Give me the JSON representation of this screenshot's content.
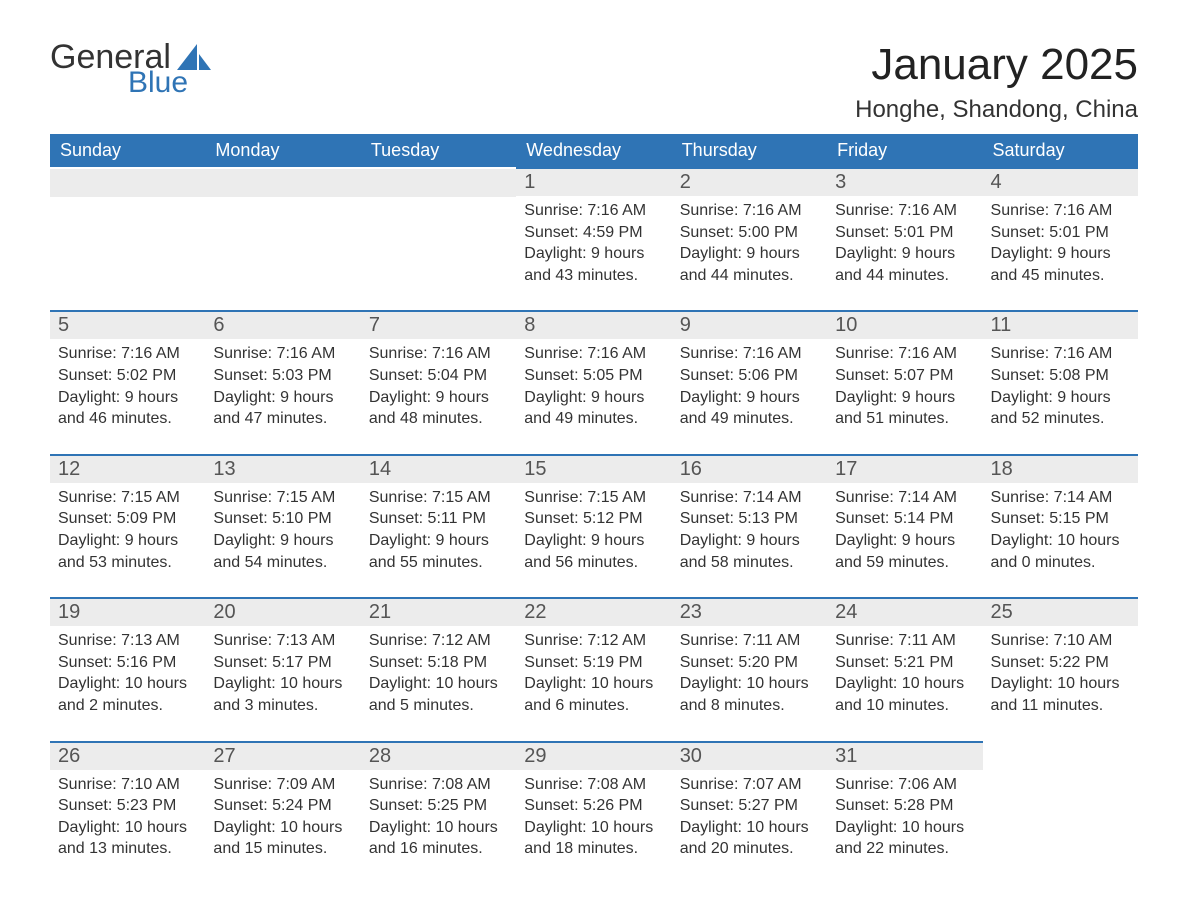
{
  "logo": {
    "general": "General",
    "blue": "Blue",
    "sail_color": "#2f74b5"
  },
  "title": "January 2025",
  "location": "Honghe, Shandong, China",
  "colors": {
    "header_bg": "#2f74b5",
    "header_fg": "#ffffff",
    "daynum_bg": "#ececec",
    "row_border": "#2f74b5",
    "text": "#333333"
  },
  "weekdays": [
    "Sunday",
    "Monday",
    "Tuesday",
    "Wednesday",
    "Thursday",
    "Friday",
    "Saturday"
  ],
  "weeks": [
    [
      null,
      null,
      null,
      {
        "n": "1",
        "sunrise": "7:16 AM",
        "sunset": "4:59 PM",
        "daylight": "9 hours and 43 minutes."
      },
      {
        "n": "2",
        "sunrise": "7:16 AM",
        "sunset": "5:00 PM",
        "daylight": "9 hours and 44 minutes."
      },
      {
        "n": "3",
        "sunrise": "7:16 AM",
        "sunset": "5:01 PM",
        "daylight": "9 hours and 44 minutes."
      },
      {
        "n": "4",
        "sunrise": "7:16 AM",
        "sunset": "5:01 PM",
        "daylight": "9 hours and 45 minutes."
      }
    ],
    [
      {
        "n": "5",
        "sunrise": "7:16 AM",
        "sunset": "5:02 PM",
        "daylight": "9 hours and 46 minutes."
      },
      {
        "n": "6",
        "sunrise": "7:16 AM",
        "sunset": "5:03 PM",
        "daylight": "9 hours and 47 minutes."
      },
      {
        "n": "7",
        "sunrise": "7:16 AM",
        "sunset": "5:04 PM",
        "daylight": "9 hours and 48 minutes."
      },
      {
        "n": "8",
        "sunrise": "7:16 AM",
        "sunset": "5:05 PM",
        "daylight": "9 hours and 49 minutes."
      },
      {
        "n": "9",
        "sunrise": "7:16 AM",
        "sunset": "5:06 PM",
        "daylight": "9 hours and 49 minutes."
      },
      {
        "n": "10",
        "sunrise": "7:16 AM",
        "sunset": "5:07 PM",
        "daylight": "9 hours and 51 minutes."
      },
      {
        "n": "11",
        "sunrise": "7:16 AM",
        "sunset": "5:08 PM",
        "daylight": "9 hours and 52 minutes."
      }
    ],
    [
      {
        "n": "12",
        "sunrise": "7:15 AM",
        "sunset": "5:09 PM",
        "daylight": "9 hours and 53 minutes."
      },
      {
        "n": "13",
        "sunrise": "7:15 AM",
        "sunset": "5:10 PM",
        "daylight": "9 hours and 54 minutes."
      },
      {
        "n": "14",
        "sunrise": "7:15 AM",
        "sunset": "5:11 PM",
        "daylight": "9 hours and 55 minutes."
      },
      {
        "n": "15",
        "sunrise": "7:15 AM",
        "sunset": "5:12 PM",
        "daylight": "9 hours and 56 minutes."
      },
      {
        "n": "16",
        "sunrise": "7:14 AM",
        "sunset": "5:13 PM",
        "daylight": "9 hours and 58 minutes."
      },
      {
        "n": "17",
        "sunrise": "7:14 AM",
        "sunset": "5:14 PM",
        "daylight": "9 hours and 59 minutes."
      },
      {
        "n": "18",
        "sunrise": "7:14 AM",
        "sunset": "5:15 PM",
        "daylight": "10 hours and 0 minutes."
      }
    ],
    [
      {
        "n": "19",
        "sunrise": "7:13 AM",
        "sunset": "5:16 PM",
        "daylight": "10 hours and 2 minutes."
      },
      {
        "n": "20",
        "sunrise": "7:13 AM",
        "sunset": "5:17 PM",
        "daylight": "10 hours and 3 minutes."
      },
      {
        "n": "21",
        "sunrise": "7:12 AM",
        "sunset": "5:18 PM",
        "daylight": "10 hours and 5 minutes."
      },
      {
        "n": "22",
        "sunrise": "7:12 AM",
        "sunset": "5:19 PM",
        "daylight": "10 hours and 6 minutes."
      },
      {
        "n": "23",
        "sunrise": "7:11 AM",
        "sunset": "5:20 PM",
        "daylight": "10 hours and 8 minutes."
      },
      {
        "n": "24",
        "sunrise": "7:11 AM",
        "sunset": "5:21 PM",
        "daylight": "10 hours and 10 minutes."
      },
      {
        "n": "25",
        "sunrise": "7:10 AM",
        "sunset": "5:22 PM",
        "daylight": "10 hours and 11 minutes."
      }
    ],
    [
      {
        "n": "26",
        "sunrise": "7:10 AM",
        "sunset": "5:23 PM",
        "daylight": "10 hours and 13 minutes."
      },
      {
        "n": "27",
        "sunrise": "7:09 AM",
        "sunset": "5:24 PM",
        "daylight": "10 hours and 15 minutes."
      },
      {
        "n": "28",
        "sunrise": "7:08 AM",
        "sunset": "5:25 PM",
        "daylight": "10 hours and 16 minutes."
      },
      {
        "n": "29",
        "sunrise": "7:08 AM",
        "sunset": "5:26 PM",
        "daylight": "10 hours and 18 minutes."
      },
      {
        "n": "30",
        "sunrise": "7:07 AM",
        "sunset": "5:27 PM",
        "daylight": "10 hours and 20 minutes."
      },
      {
        "n": "31",
        "sunrise": "7:06 AM",
        "sunset": "5:28 PM",
        "daylight": "10 hours and 22 minutes."
      },
      null
    ]
  ],
  "labels": {
    "sunrise": "Sunrise: ",
    "sunset": "Sunset: ",
    "daylight": "Daylight: "
  }
}
